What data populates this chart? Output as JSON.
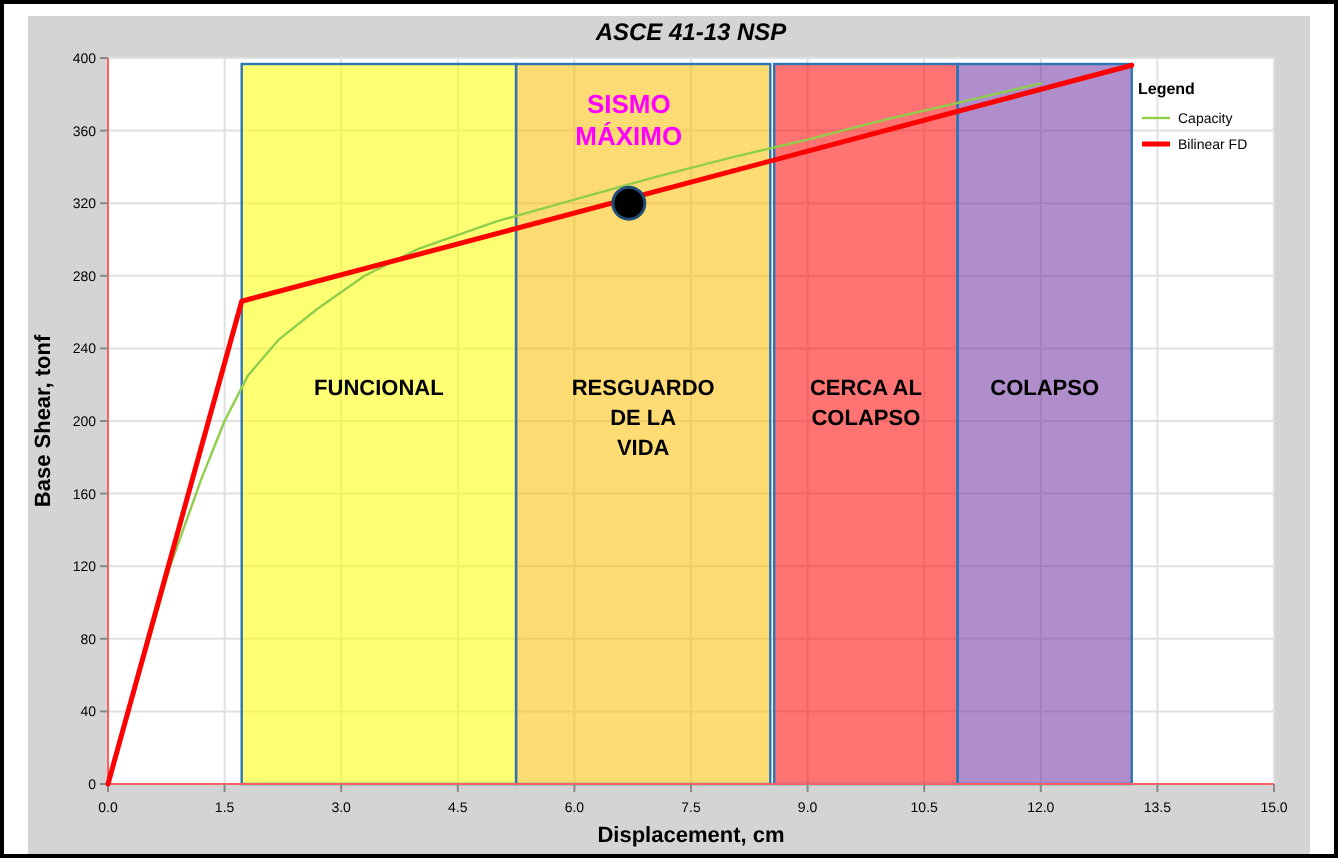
{
  "chart_data": {
    "type": "line",
    "title": "ASCE 41-13 NSP",
    "xlabel": "Displacement, cm",
    "ylabel": "Base Shear, tonf",
    "legend_title": "Legend",
    "legend": "top right",
    "grid": true,
    "xlim": [
      0,
      15
    ],
    "ylim": [
      0,
      400
    ],
    "xticks": [
      {
        "value": 0,
        "label": "0.0"
      },
      {
        "value": 1.5,
        "label": "1.5"
      },
      {
        "value": 3,
        "label": "3.0"
      },
      {
        "value": 4.5,
        "label": "4.5"
      },
      {
        "value": 6,
        "label": "6.0"
      },
      {
        "value": 7.5,
        "label": "7.5"
      },
      {
        "value": 9,
        "label": "9.0"
      },
      {
        "value": 10.5,
        "label": "10.5"
      },
      {
        "value": 12,
        "label": "12.0"
      },
      {
        "value": 13.5,
        "label": "13.5"
      },
      {
        "value": 15,
        "label": "15.0"
      }
    ],
    "yticks": [
      0,
      40,
      80,
      120,
      160,
      200,
      240,
      280,
      320,
      360,
      400
    ],
    "bands": [
      {
        "axis": "x",
        "from": 1.72,
        "to": 5.25,
        "label": "FUNCIONAL",
        "color": "#ffff00"
      },
      {
        "axis": "x",
        "from": 5.25,
        "to": 8.52,
        "label": "RESGUARDO\nDE LA\nVIDA",
        "color": "#ffc000"
      },
      {
        "axis": "x",
        "from": 8.57,
        "to": 10.93,
        "label": "CERCA AL\nCOLAPSO",
        "color": "#ff0000"
      },
      {
        "axis": "x",
        "from": 10.93,
        "to": 13.17,
        "label": "COLAPSO",
        "color": "#7030a0"
      }
    ],
    "series": [
      {
        "name": "Capacity",
        "color": "#8fce4a",
        "x": [
          0,
          0.8,
          1.2,
          1.5,
          1.8,
          2.2,
          2.7,
          3.3,
          4,
          5,
          6,
          7,
          8,
          9,
          10,
          11,
          12
        ],
        "values": [
          0,
          120,
          168,
          200,
          225,
          245,
          262,
          280,
          295,
          310,
          322,
          334,
          345,
          355,
          366,
          376,
          386
        ]
      },
      {
        "name": "Bilinear FD",
        "color": "#ff0000",
        "x": [
          0,
          1.72,
          13.17
        ],
        "values": [
          0,
          266,
          396
        ]
      },
      {
        "type": "scatter",
        "color": "#000000",
        "x": [
          6.7
        ],
        "values": [
          320
        ]
      }
    ],
    "annotations": [
      {
        "text": "SISMO\nMÁXIMO",
        "x": 6.7,
        "y": 320
      }
    ]
  }
}
